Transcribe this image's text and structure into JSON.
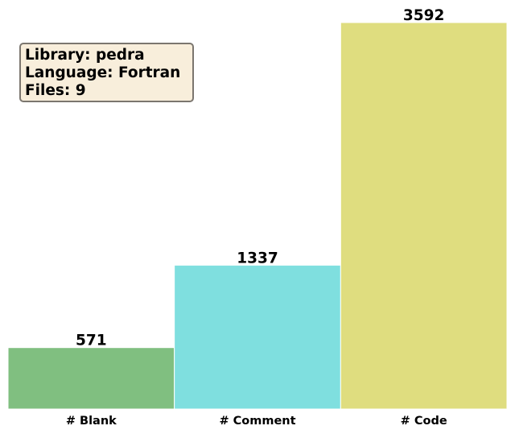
{
  "chart_data": {
    "type": "bar",
    "categories": [
      "# Blank",
      "# Comment",
      "# Code"
    ],
    "values": [
      571,
      1337,
      3592
    ],
    "colors": [
      "#80bf80",
      "#7fdfdf",
      "#dfdd7f"
    ],
    "edge_color": "#ffffff",
    "ylim": [
      0,
      3592
    ],
    "title": "",
    "xlabel": "",
    "ylabel": "",
    "grid": false,
    "axes_visible": false,
    "data_labels": [
      "571",
      "1337",
      "3592"
    ]
  },
  "info_box": {
    "library": "Library: pedra",
    "language": "Language: Fortran",
    "files": "Files: 9",
    "background": "#f8eedb",
    "border_color": "#7b766f"
  }
}
